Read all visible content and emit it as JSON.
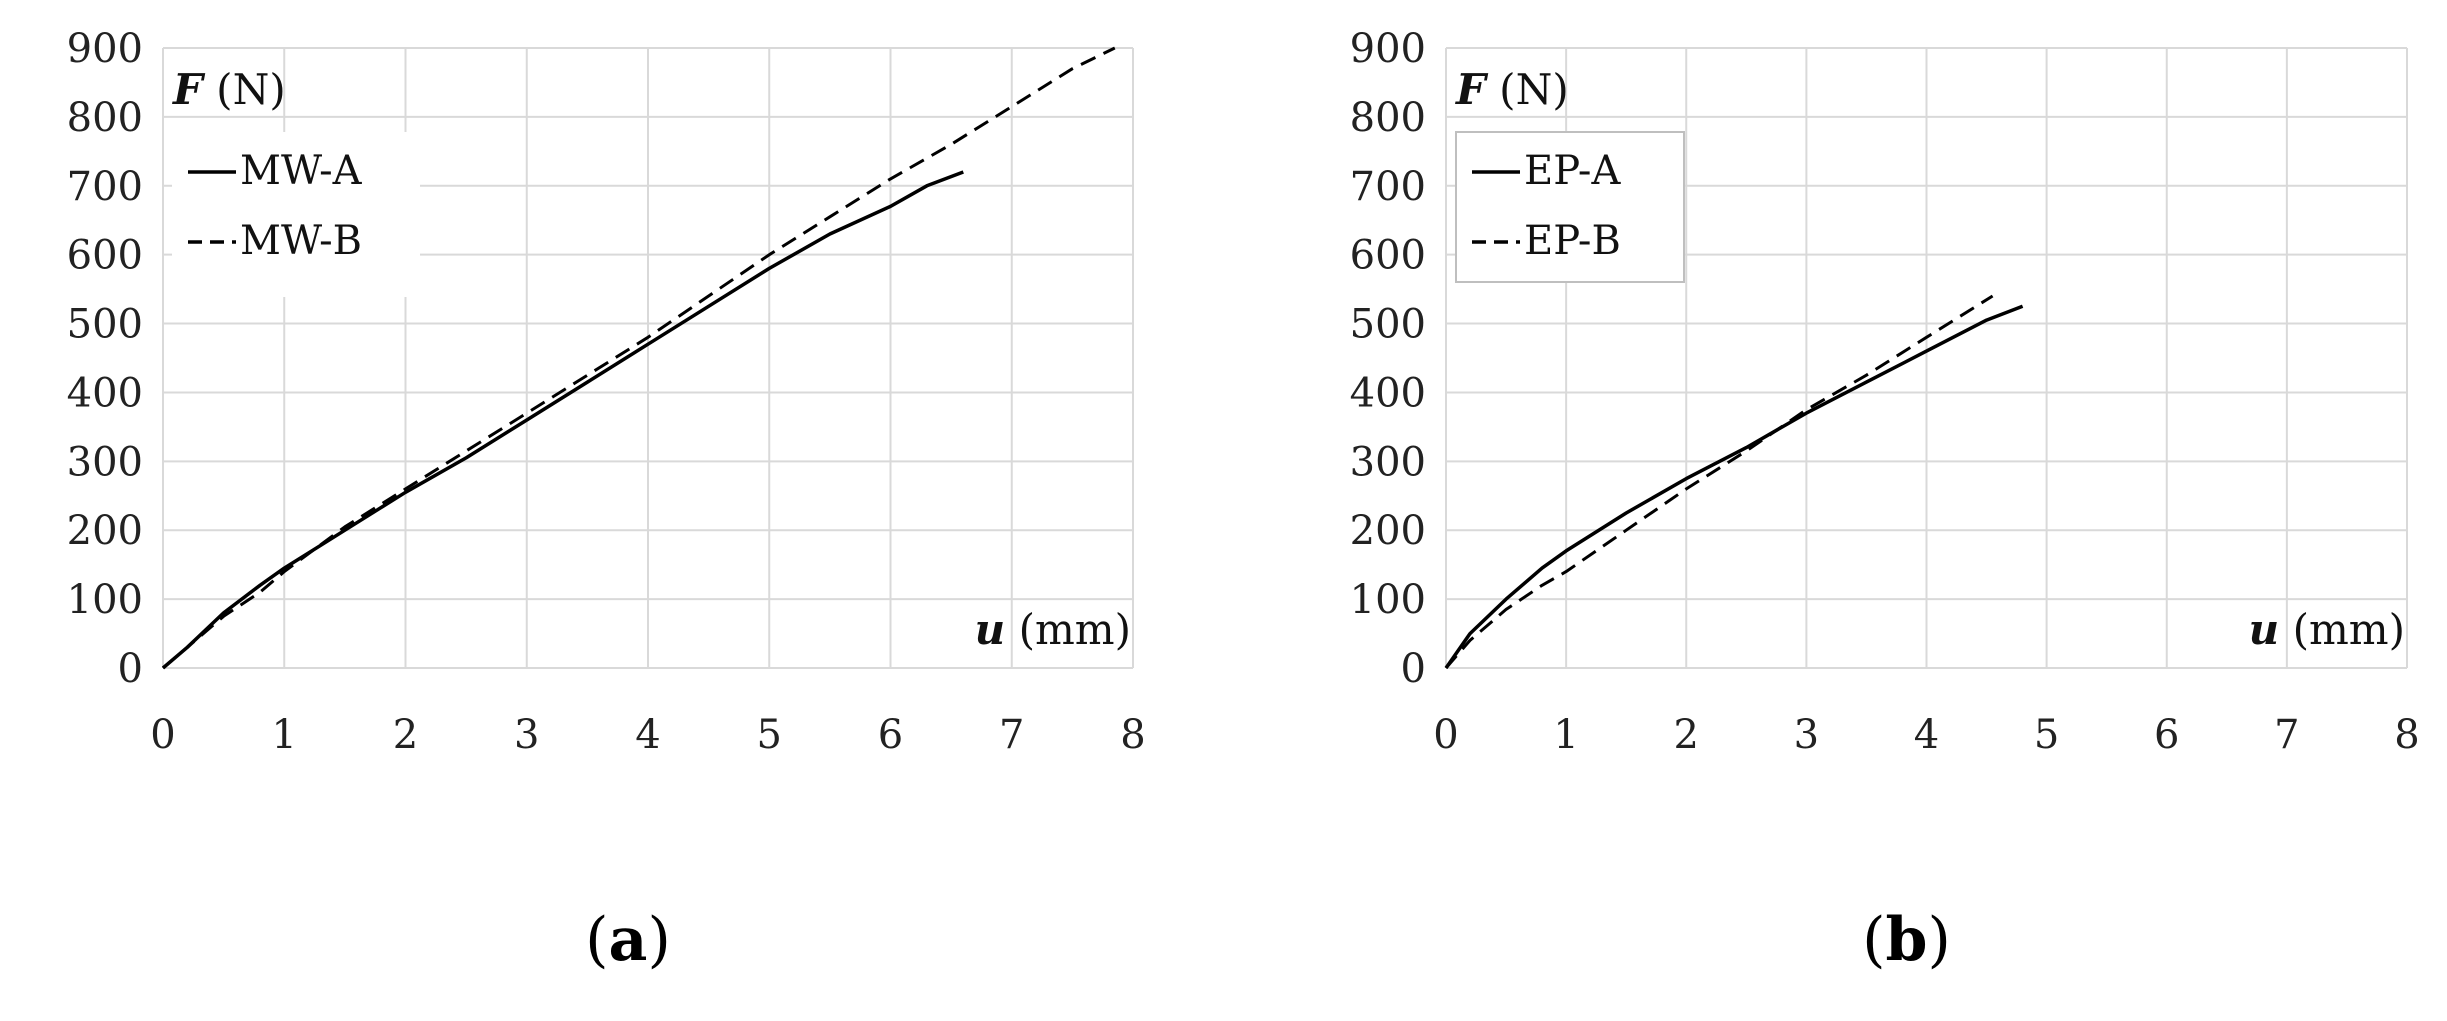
{
  "chart_data": [
    {
      "type": "line",
      "panel_label": "(a)",
      "panel_letter": "a",
      "y_axis_title_var": "F",
      "y_axis_title_unit": " (N)",
      "x_axis_title_var": "u",
      "x_axis_title_unit": " (mm)",
      "xlim": [
        0,
        8
      ],
      "ylim": [
        0,
        900
      ],
      "x_ticks": [
        0,
        1,
        2,
        3,
        4,
        5,
        6,
        7,
        8
      ],
      "y_ticks": [
        0,
        100,
        200,
        300,
        400,
        500,
        600,
        700,
        800,
        900
      ],
      "grid": true,
      "legend_position": "top-left",
      "legend_border": false,
      "series": [
        {
          "name": "MW-A",
          "line_style": "solid",
          "color": "#000000",
          "x": [
            0,
            0.2,
            0.5,
            0.8,
            1.0,
            1.5,
            2.0,
            2.5,
            3.0,
            3.5,
            4.0,
            4.5,
            5.0,
            5.5,
            6.0,
            6.3,
            6.6
          ],
          "y": [
            0,
            30,
            80,
            120,
            145,
            200,
            255,
            305,
            360,
            415,
            470,
            525,
            580,
            630,
            670,
            700,
            720
          ]
        },
        {
          "name": "MW-B",
          "line_style": "dashed",
          "color": "#000000",
          "x": [
            0,
            0.2,
            0.5,
            0.8,
            1.0,
            1.5,
            2.0,
            2.5,
            3.0,
            3.5,
            4.0,
            4.5,
            5.0,
            5.5,
            6.0,
            6.5,
            7.0,
            7.5,
            7.85
          ],
          "y": [
            0,
            30,
            75,
            110,
            140,
            205,
            260,
            315,
            370,
            425,
            480,
            540,
            600,
            655,
            710,
            760,
            815,
            870,
            900
          ]
        }
      ]
    },
    {
      "type": "line",
      "panel_label": "(b)",
      "panel_letter": "b",
      "y_axis_title_var": "F",
      "y_axis_title_unit": " (N)",
      "x_axis_title_var": "u",
      "x_axis_title_unit": " (mm)",
      "xlim": [
        0,
        8
      ],
      "ylim": [
        0,
        900
      ],
      "x_ticks": [
        0,
        1,
        2,
        3,
        4,
        5,
        6,
        7,
        8
      ],
      "y_ticks": [
        0,
        100,
        200,
        300,
        400,
        500,
        600,
        700,
        800,
        900
      ],
      "grid": true,
      "legend_position": "top-left",
      "legend_border": true,
      "series": [
        {
          "name": "EP-A",
          "line_style": "solid",
          "color": "#000000",
          "x": [
            0,
            0.2,
            0.5,
            0.8,
            1.0,
            1.5,
            2.0,
            2.5,
            3.0,
            3.5,
            4.0,
            4.5,
            4.8
          ],
          "y": [
            0,
            50,
            100,
            145,
            170,
            225,
            275,
            320,
            370,
            415,
            460,
            505,
            525
          ]
        },
        {
          "name": "EP-B",
          "line_style": "dashed",
          "color": "#000000",
          "x": [
            0,
            0.2,
            0.5,
            0.8,
            1.0,
            1.5,
            2.0,
            2.5,
            3.0,
            3.5,
            4.0,
            4.55
          ],
          "y": [
            0,
            40,
            85,
            120,
            140,
            200,
            260,
            315,
            375,
            425,
            480,
            540
          ]
        }
      ]
    }
  ]
}
